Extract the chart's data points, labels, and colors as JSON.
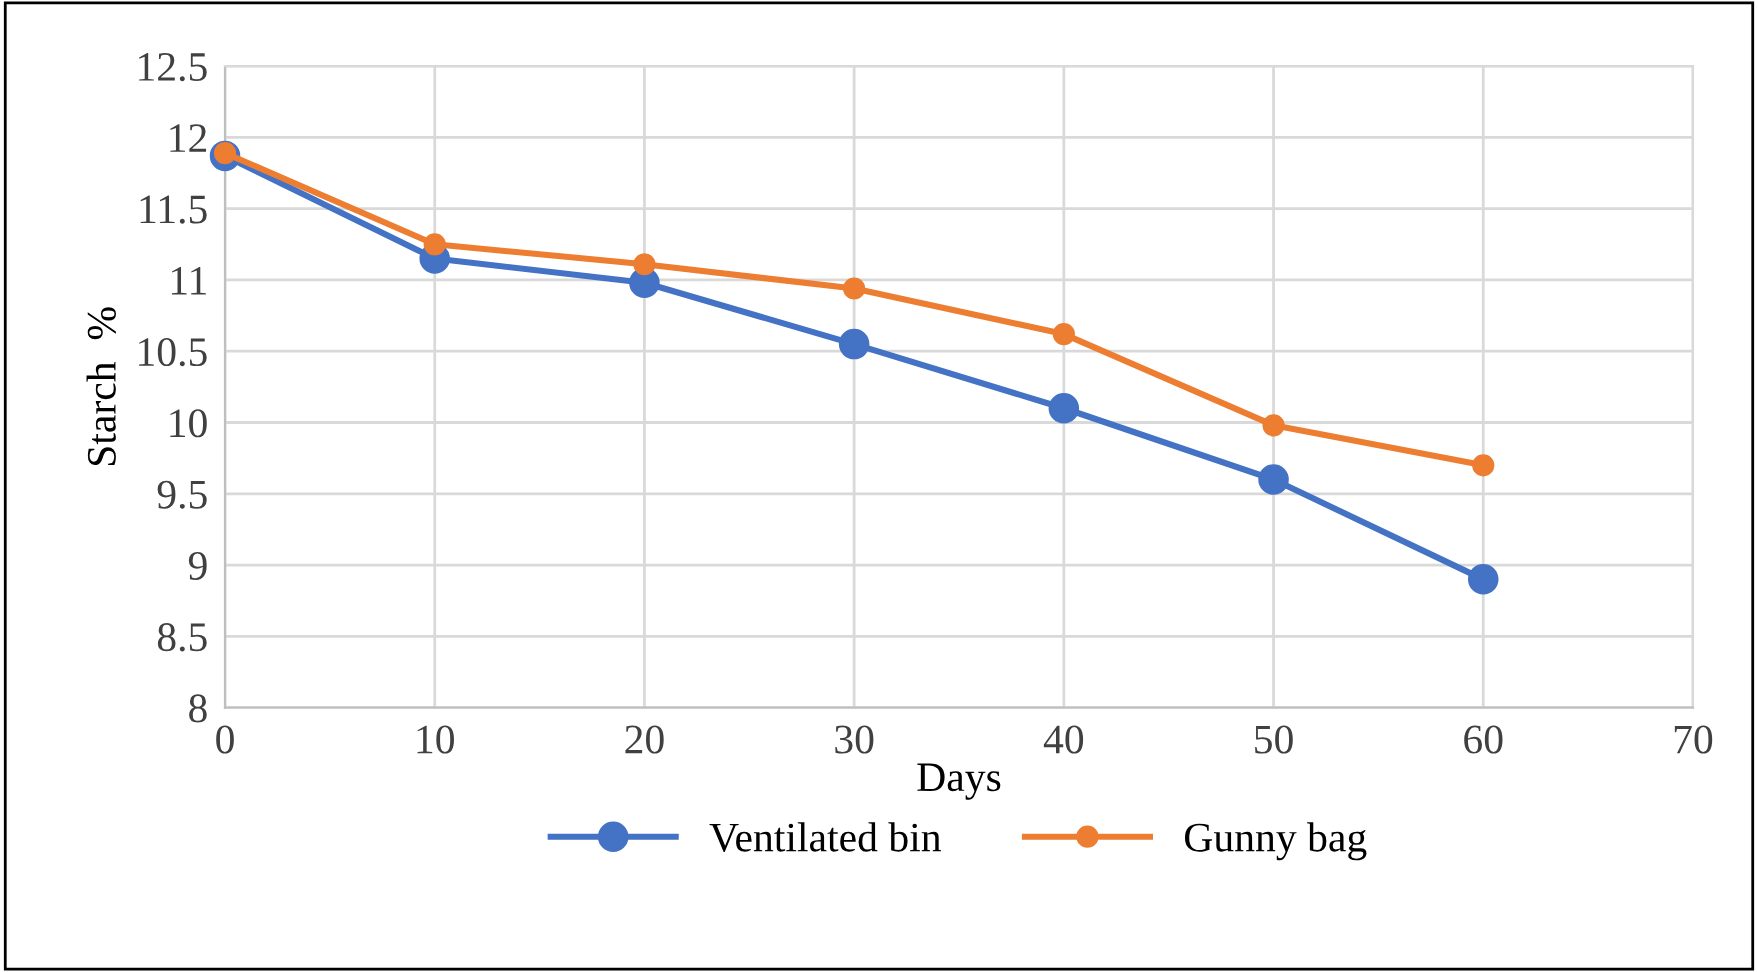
{
  "chart_data": {
    "type": "line",
    "xlabel": "Days",
    "ylabel": "Starch  %",
    "x": [
      0,
      10,
      20,
      30,
      40,
      50,
      60
    ],
    "series": [
      {
        "name": "Ventilated bin",
        "color": "#4472c4",
        "values": [
          11.87,
          11.15,
          10.98,
          10.55,
          10.1,
          9.6,
          8.9
        ]
      },
      {
        "name": "Gunny bag",
        "color": "#ed7d31",
        "values": [
          11.89,
          11.25,
          11.11,
          10.94,
          10.62,
          9.98,
          9.7
        ]
      }
    ],
    "xlim": [
      0,
      70
    ],
    "xticks": [
      0,
      10,
      20,
      30,
      40,
      50,
      60,
      70
    ],
    "ylim": [
      8,
      12.5
    ],
    "yticks": [
      8,
      8.5,
      9,
      9.5,
      10,
      10.5,
      11,
      11.5,
      12,
      12.5
    ],
    "grid": true,
    "legend": "bottom",
    "marker": "circle",
    "line_style": "solid"
  }
}
